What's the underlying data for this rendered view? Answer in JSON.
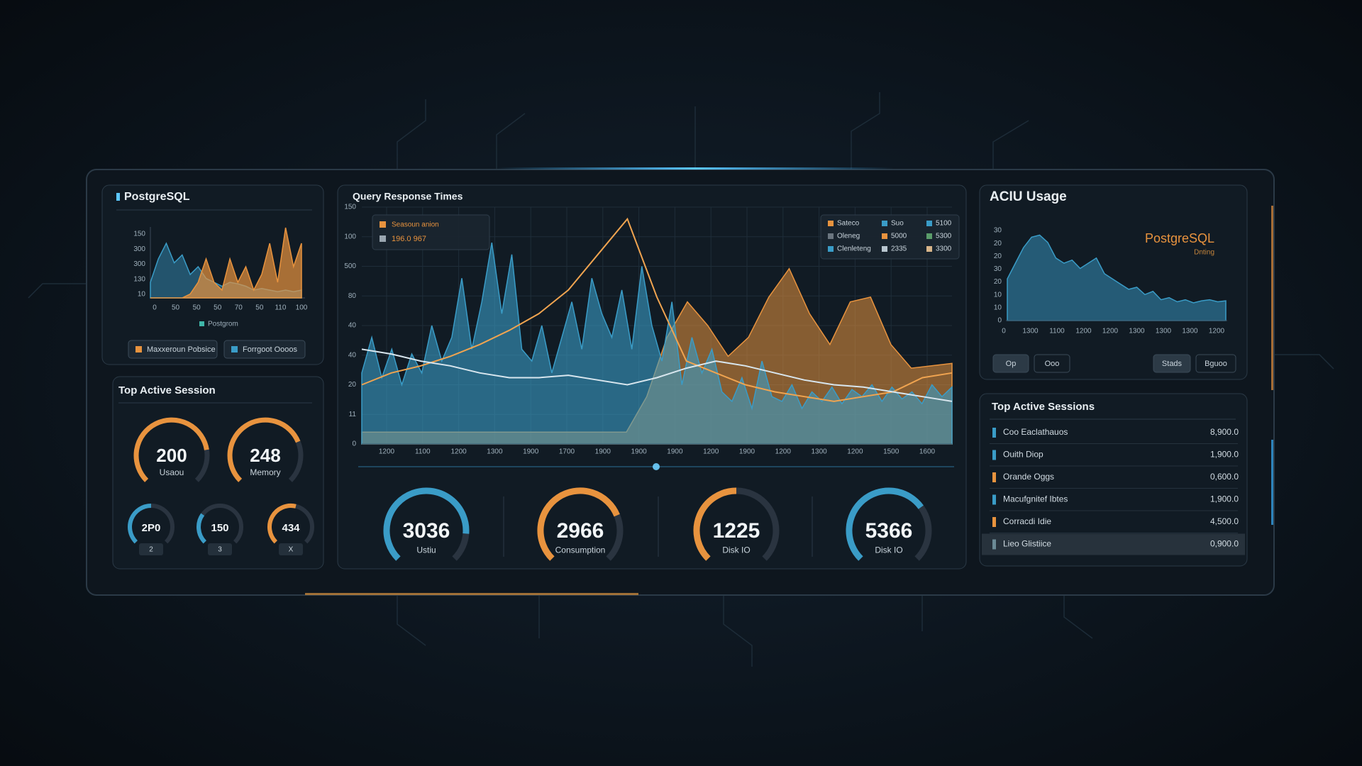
{
  "postgres_panel": {
    "title": "PostgreSQL",
    "chart": {
      "type": "area",
      "y_labels": [
        "150",
        "300",
        "300",
        "130",
        "10"
      ],
      "x_labels": [
        "0",
        "50",
        "50",
        "50",
        "70",
        "50",
        "110",
        "100"
      ],
      "ylim": [
        0,
        100
      ],
      "series": [
        {
          "color": "#3a9cc7",
          "values": [
            20,
            50,
            70,
            45,
            55,
            30,
            40,
            25,
            20,
            15,
            20,
            18,
            15,
            10,
            12,
            10,
            8,
            10,
            8,
            10
          ]
        },
        {
          "color": "#e8933e",
          "values": [
            0,
            0,
            0,
            0,
            0,
            5,
            20,
            50,
            20,
            10,
            50,
            20,
            40,
            10,
            30,
            70,
            20,
            90,
            40,
            70
          ]
        }
      ],
      "legend": "Postgrom",
      "legend_color": "#3fb6a8"
    },
    "buttons": [
      {
        "label": "Maxxeroun Pobsice",
        "color": "#e8933e"
      },
      {
        "label": "Forrgoot Oooos",
        "color": "#3a9cc7"
      }
    ]
  },
  "session_panel": {
    "title": "Top Active Session",
    "big_gauges": [
      {
        "value": 200,
        "label": "Usaou",
        "color": "#e8933e",
        "arc": 0.8
      },
      {
        "value": 248,
        "label": "Memory",
        "color": "#e8933e",
        "arc": 0.75
      }
    ],
    "small_gauges": [
      {
        "value": "2P0",
        "badge": "2",
        "color": "#3a9cc7",
        "arc": 0.5
      },
      {
        "value": 150,
        "badge": "3",
        "color": "#3a9cc7",
        "arc": 0.3
      },
      {
        "value": 434,
        "badge": "X",
        "color": "#e8933e",
        "arc": 0.55
      }
    ]
  },
  "query_panel": {
    "title": "Query Response Times",
    "tooltip": {
      "title": "Seasoun anion",
      "value": "196.0 967"
    },
    "legend": [
      [
        {
          "text": "Sateco",
          "color": "#e8933e"
        },
        {
          "text": "Suo",
          "color": "#3a9cc7"
        },
        {
          "text": "5100",
          "color": "#3a9cc7"
        }
      ],
      [
        {
          "text": "Oleneg",
          "color": "#6b7680"
        },
        {
          "text": "5000",
          "color": "#e8933e"
        },
        {
          "text": "5300",
          "color": "#5a9c6a"
        }
      ],
      [
        {
          "text": "Clenleteng",
          "color": "#3a9cc7"
        },
        {
          "text": "2335",
          "color": "#b9c6cf"
        },
        {
          "text": "3300",
          "color": "#d8b58a"
        }
      ]
    ],
    "chart": {
      "type": "area",
      "y_labels": [
        "150",
        "100",
        "500",
        "80",
        "40",
        "40",
        "20",
        "11",
        "0"
      ],
      "x_labels": [
        "1200",
        "1100",
        "1200",
        "1300",
        "1900",
        "1700",
        "1900",
        "1900",
        "1900",
        "1200",
        "1900",
        "1200",
        "1300",
        "1200",
        "1500",
        "1600"
      ],
      "ylim": [
        0,
        100
      ],
      "series": [
        {
          "color": "#e8933e",
          "kind": "area",
          "values": [
            5,
            5,
            5,
            5,
            5,
            5,
            5,
            5,
            5,
            5,
            5,
            5,
            5,
            5,
            20,
            45,
            60,
            50,
            37,
            45,
            62,
            74,
            55,
            42,
            60,
            62,
            42,
            32,
            33,
            34
          ]
        },
        {
          "color": "#3a9cc7",
          "kind": "area",
          "values": [
            30,
            45,
            28,
            40,
            25,
            38,
            30,
            50,
            35,
            45,
            70,
            40,
            60,
            85,
            55,
            80,
            40,
            35,
            50,
            30,
            45,
            60,
            40,
            70,
            55,
            45,
            65,
            40,
            75,
            50,
            35,
            60,
            25,
            45,
            30,
            40,
            22,
            18,
            28,
            15,
            35,
            20,
            18,
            25,
            15,
            22,
            18,
            24,
            17,
            23,
            20,
            25,
            18,
            24,
            19,
            22,
            17,
            25,
            20,
            24
          ]
        },
        {
          "color": "#f0a450",
          "kind": "line",
          "values": [
            25,
            30,
            33,
            37,
            42,
            48,
            55,
            65,
            80,
            95,
            62,
            35,
            30,
            25,
            22,
            20,
            18,
            20,
            22,
            28,
            30
          ]
        },
        {
          "color": "#d8e6ee",
          "kind": "line",
          "values": [
            40,
            38,
            35,
            33,
            30,
            28,
            28,
            29,
            27,
            25,
            28,
            32,
            35,
            33,
            30,
            27,
            25,
            24,
            22,
            20,
            18
          ]
        }
      ]
    },
    "gauges": [
      {
        "value": 3036,
        "label": "Ustiu",
        "color": "#3a9cc7",
        "arc": 0.85
      },
      {
        "value": 2966,
        "label": "Consumption",
        "color": "#e8933e",
        "arc": 0.75
      },
      {
        "value": 1225,
        "label": "Disk IO",
        "color": "#e8933e",
        "arc": 0.5
      },
      {
        "value": 5366,
        "label": "Disk IO",
        "color": "#3a9cc7",
        "arc": 0.7
      }
    ]
  },
  "usage_panel": {
    "title": "ACIU Usage",
    "brand": "PostgreSQL",
    "brand_sub": "Dnting",
    "chart": {
      "type": "area",
      "y_labels": [
        "30",
        "20",
        "20",
        "30",
        "20",
        "10",
        "10",
        "0"
      ],
      "x_labels": [
        "0",
        "1300",
        "1100",
        "1200",
        "1200",
        "1300",
        "1300",
        "1300",
        "1200"
      ],
      "ylim": [
        0,
        100
      ],
      "color": "#3a9cc7",
      "values": [
        40,
        55,
        70,
        80,
        82,
        75,
        60,
        55,
        58,
        50,
        55,
        60,
        45,
        40,
        35,
        30,
        32,
        25,
        28,
        20,
        22,
        18,
        20,
        17,
        19,
        20,
        18,
        19
      ]
    },
    "buttons": [
      {
        "label": "Op",
        "filled": true
      },
      {
        "label": "Ooo",
        "filled": false
      },
      {
        "label": "Stads",
        "filled": true
      },
      {
        "label": "Bguoo",
        "filled": false
      }
    ]
  },
  "sessions_panel": {
    "title": "Top Active Sessions",
    "rows": [
      {
        "name": "Coo Eaclathauos",
        "value": "8,900.0",
        "color": "#3a9cc7"
      },
      {
        "name": "Ouith Diop",
        "value": "1,900.0",
        "color": "#3a9cc7"
      },
      {
        "name": "Orande Oggs",
        "value": "0,600.0",
        "color": "#e8933e"
      },
      {
        "name": "Macufgnitef Ibtes",
        "value": "1,900.0",
        "color": "#3a9cc7"
      },
      {
        "name": "Corracdi Idie",
        "value": "4,500.0",
        "color": "#e8933e"
      },
      {
        "name": "Lieo Glistiice",
        "value": "0,900.0",
        "color": "#6b8a96"
      }
    ]
  }
}
